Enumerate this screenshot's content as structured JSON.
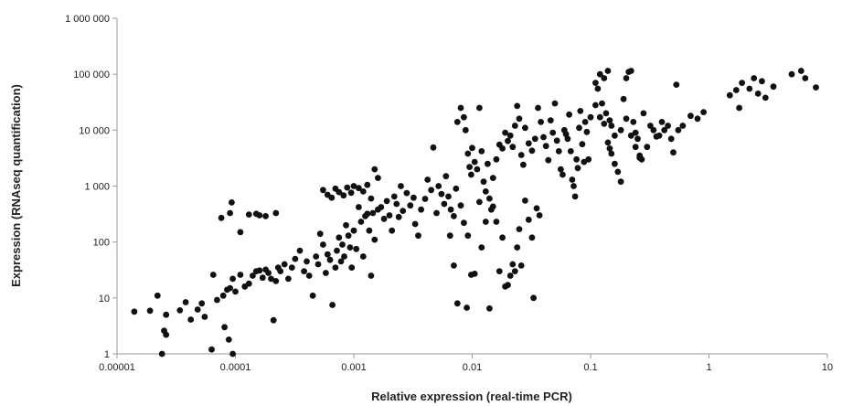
{
  "chart_data": {
    "type": "scatter",
    "title": "",
    "xlabel": "Relative expression (real-time PCR)",
    "ylabel": "Expression (RNAseq quantification)",
    "x_scale": "log",
    "y_scale": "log",
    "xlim": [
      1e-05,
      10
    ],
    "ylim": [
      1,
      1000000
    ],
    "grid": false,
    "x_ticks": [
      {
        "value": 1e-05,
        "label": "0.00001"
      },
      {
        "value": 0.0001,
        "label": "0.0001"
      },
      {
        "value": 0.001,
        "label": "0.001"
      },
      {
        "value": 0.01,
        "label": "0.01"
      },
      {
        "value": 0.1,
        "label": "0.1"
      },
      {
        "value": 1,
        "label": "1"
      },
      {
        "value": 10,
        "label": "10"
      }
    ],
    "y_ticks": [
      {
        "value": 1,
        "label": "1"
      },
      {
        "value": 10,
        "label": "10"
      },
      {
        "value": 100,
        "label": "100"
      },
      {
        "value": 1000,
        "label": "1 000"
      },
      {
        "value": 10000,
        "label": "10 000"
      },
      {
        "value": 100000,
        "label": "100 000"
      },
      {
        "value": 1000000,
        "label": "1 000 000"
      }
    ],
    "points": [
      [
        1.4e-05,
        5.7
      ],
      [
        1.9e-05,
        5.9
      ],
      [
        2.2e-05,
        11
      ],
      [
        2.5e-05,
        2.6
      ],
      [
        2.4e-05,
        1.0
      ],
      [
        2.6e-05,
        5.0
      ],
      [
        2.6e-05,
        2.2
      ],
      [
        3.4e-05,
        6.0
      ],
      [
        3.8e-05,
        8.4
      ],
      [
        4.2e-05,
        4.1
      ],
      [
        4.8e-05,
        6.2
      ],
      [
        5.2e-05,
        8.0
      ],
      [
        5.5e-05,
        4.6
      ],
      [
        6.3e-05,
        1.2
      ],
      [
        7e-05,
        9.2
      ],
      [
        6.5e-05,
        26
      ],
      [
        7.6e-05,
        270
      ],
      [
        8.1e-05,
        3.0
      ],
      [
        8.8e-05,
        1.8
      ],
      [
        9.5e-05,
        1.0
      ],
      [
        9.3e-05,
        510
      ],
      [
        9e-05,
        330
      ],
      [
        0.00011,
        150
      ],
      [
        0.00013,
        310
      ],
      [
        0.00015,
        320
      ],
      [
        0.00016,
        300
      ],
      [
        0.00018,
        290
      ],
      [
        0.00022,
        330
      ],
      [
        7.9e-05,
        11
      ],
      [
        8.5e-05,
        14
      ],
      [
        9e-05,
        15
      ],
      [
        9.5e-05,
        22
      ],
      [
        0.0001,
        13
      ],
      [
        0.00011,
        26
      ],
      [
        0.00012,
        16
      ],
      [
        0.00013,
        18
      ],
      [
        0.00014,
        25
      ],
      [
        0.00015,
        30
      ],
      [
        0.00016,
        31
      ],
      [
        0.00017,
        23
      ],
      [
        0.00018,
        32
      ],
      [
        0.00019,
        28
      ],
      [
        0.0002,
        22
      ],
      [
        0.00021,
        4.0
      ],
      [
        0.00022,
        20
      ],
      [
        0.00023,
        35
      ],
      [
        0.00024,
        30
      ],
      [
        0.00026,
        40
      ],
      [
        0.00028,
        22
      ],
      [
        0.0003,
        35
      ],
      [
        0.00032,
        50
      ],
      [
        0.00035,
        70
      ],
      [
        0.00038,
        30
      ],
      [
        0.0004,
        45
      ],
      [
        0.00042,
        25
      ],
      [
        0.00045,
        11
      ],
      [
        0.00048,
        55
      ],
      [
        0.0005,
        40
      ],
      [
        0.00052,
        140
      ],
      [
        0.00055,
        90
      ],
      [
        0.00058,
        28
      ],
      [
        0.0006,
        60
      ],
      [
        0.00063,
        48
      ],
      [
        0.00066,
        7.5
      ],
      [
        0.0007,
        35
      ],
      [
        0.00072,
        70
      ],
      [
        0.00075,
        120
      ],
      [
        0.00078,
        45
      ],
      [
        0.0008,
        90
      ],
      [
        0.00083,
        55
      ],
      [
        0.00086,
        200
      ],
      [
        0.0009,
        130
      ],
      [
        0.00093,
        80
      ],
      [
        0.00096,
        35
      ],
      [
        0.001,
        160
      ],
      [
        0.00055,
        850
      ],
      [
        0.0006,
        700
      ],
      [
        0.00065,
        620
      ],
      [
        0.0007,
        900
      ],
      [
        0.00075,
        780
      ],
      [
        0.00082,
        680
      ],
      [
        0.00088,
        940
      ],
      [
        0.00095,
        760
      ],
      [
        0.001,
        1000
      ],
      [
        0.0011,
        920
      ],
      [
        0.0012,
        800
      ],
      [
        0.0013,
        1050
      ],
      [
        0.0014,
        600
      ],
      [
        0.0015,
        2000
      ],
      [
        0.0016,
        1400
      ],
      [
        0.00105,
        75
      ],
      [
        0.0011,
        420
      ],
      [
        0.00115,
        230
      ],
      [
        0.0012,
        55
      ],
      [
        0.00125,
        290
      ],
      [
        0.0013,
        320
      ],
      [
        0.00135,
        160
      ],
      [
        0.0014,
        25
      ],
      [
        0.00145,
        330
      ],
      [
        0.0015,
        110
      ],
      [
        0.0016,
        380
      ],
      [
        0.0017,
        420
      ],
      [
        0.0018,
        260
      ],
      [
        0.0019,
        540
      ],
      [
        0.002,
        300
      ],
      [
        0.0021,
        160
      ],
      [
        0.0022,
        650
      ],
      [
        0.0023,
        480
      ],
      [
        0.0024,
        280
      ],
      [
        0.0025,
        1000
      ],
      [
        0.0026,
        360
      ],
      [
        0.0028,
        750
      ],
      [
        0.003,
        450
      ],
      [
        0.0032,
        620
      ],
      [
        0.0033,
        210
      ],
      [
        0.0035,
        130
      ],
      [
        0.0037,
        380
      ],
      [
        0.004,
        590
      ],
      [
        0.0042,
        1300
      ],
      [
        0.0045,
        850
      ],
      [
        0.0047,
        4900
      ],
      [
        0.005,
        330
      ],
      [
        0.0052,
        1000
      ],
      [
        0.0055,
        720
      ],
      [
        0.0058,
        480
      ],
      [
        0.006,
        1500
      ],
      [
        0.0063,
        650
      ],
      [
        0.0066,
        380
      ],
      [
        0.007,
        290
      ],
      [
        0.0073,
        900
      ],
      [
        0.0075,
        14000
      ],
      [
        0.008,
        25000
      ],
      [
        0.0085,
        17000
      ],
      [
        0.0088,
        10000
      ],
      [
        0.0092,
        3800
      ],
      [
        0.0095,
        2200
      ],
      [
        0.0098,
        1600
      ],
      [
        0.01,
        4800
      ],
      [
        0.0105,
        2700
      ],
      [
        0.011,
        2000
      ],
      [
        0.0115,
        25000
      ],
      [
        0.012,
        4200
      ],
      [
        0.0125,
        1200
      ],
      [
        0.013,
        800
      ],
      [
        0.0135,
        2500
      ],
      [
        0.014,
        600
      ],
      [
        0.015,
        1400
      ],
      [
        0.016,
        3000
      ],
      [
        0.017,
        5500
      ],
      [
        0.018,
        4700
      ],
      [
        0.019,
        9000
      ],
      [
        0.02,
        6400
      ],
      [
        0.021,
        8000
      ],
      [
        0.022,
        5000
      ],
      [
        0.023,
        12000
      ],
      [
        0.024,
        27000
      ],
      [
        0.025,
        16000
      ],
      [
        0.026,
        3600
      ],
      [
        0.027,
        2400
      ],
      [
        0.028,
        11000
      ],
      [
        0.03,
        5800
      ],
      [
        0.032,
        4300
      ],
      [
        0.034,
        7000
      ],
      [
        0.036,
        25000
      ],
      [
        0.038,
        14000
      ],
      [
        0.0065,
        130
      ],
      [
        0.007,
        38
      ],
      [
        0.0075,
        8
      ],
      [
        0.008,
        450
      ],
      [
        0.0085,
        220
      ],
      [
        0.009,
        6.7
      ],
      [
        0.0092,
        130
      ],
      [
        0.0098,
        26
      ],
      [
        0.0105,
        27
      ],
      [
        0.0115,
        520
      ],
      [
        0.012,
        80
      ],
      [
        0.013,
        230
      ],
      [
        0.014,
        6.5
      ],
      [
        0.0145,
        380
      ],
      [
        0.015,
        430
      ],
      [
        0.016,
        230
      ],
      [
        0.017,
        30
      ],
      [
        0.018,
        120
      ],
      [
        0.019,
        16
      ],
      [
        0.02,
        17
      ],
      [
        0.021,
        25
      ],
      [
        0.022,
        40
      ],
      [
        0.023,
        30
      ],
      [
        0.024,
        80
      ],
      [
        0.025,
        170
      ],
      [
        0.026,
        38
      ],
      [
        0.028,
        550
      ],
      [
        0.03,
        250
      ],
      [
        0.032,
        120
      ],
      [
        0.033,
        10
      ],
      [
        0.035,
        400
      ],
      [
        0.037,
        300
      ],
      [
        0.04,
        7500
      ],
      [
        0.042,
        5200
      ],
      [
        0.044,
        2900
      ],
      [
        0.046,
        15000
      ],
      [
        0.048,
        9000
      ],
      [
        0.05,
        30000
      ],
      [
        0.052,
        6500
      ],
      [
        0.054,
        4200
      ],
      [
        0.056,
        2000
      ],
      [
        0.058,
        1600
      ],
      [
        0.06,
        10000
      ],
      [
        0.062,
        8500
      ],
      [
        0.064,
        7000
      ],
      [
        0.066,
        19000
      ],
      [
        0.068,
        4200
      ],
      [
        0.07,
        1300
      ],
      [
        0.072,
        1000
      ],
      [
        0.074,
        650
      ],
      [
        0.076,
        3000
      ],
      [
        0.078,
        2100
      ],
      [
        0.08,
        11000
      ],
      [
        0.082,
        22000
      ],
      [
        0.085,
        5600
      ],
      [
        0.088,
        2700
      ],
      [
        0.09,
        14000
      ],
      [
        0.093,
        9300
      ],
      [
        0.096,
        3000
      ],
      [
        0.1,
        17000
      ],
      [
        0.12,
        100000
      ],
      [
        0.13,
        85000
      ],
      [
        0.14,
        115000
      ],
      [
        0.11,
        70000
      ],
      [
        0.115,
        55000
      ],
      [
        0.125,
        30000
      ],
      [
        0.135,
        20000
      ],
      [
        0.145,
        15000
      ],
      [
        0.15,
        12000
      ],
      [
        0.16,
        8000
      ],
      [
        0.17,
        1800
      ],
      [
        0.18,
        1200
      ],
      [
        0.19,
        36000
      ],
      [
        0.2,
        85000
      ],
      [
        0.21,
        110000
      ],
      [
        0.22,
        115000
      ],
      [
        0.23,
        14000
      ],
      [
        0.24,
        9000
      ],
      [
        0.25,
        7000
      ],
      [
        0.26,
        3500
      ],
      [
        0.27,
        3000
      ],
      [
        0.28,
        20000
      ],
      [
        0.3,
        5000
      ],
      [
        0.32,
        12000
      ],
      [
        0.34,
        10000
      ],
      [
        0.36,
        7700
      ],
      [
        0.38,
        8000
      ],
      [
        0.4,
        14000
      ],
      [
        0.42,
        10000
      ],
      [
        0.45,
        12000
      ],
      [
        0.48,
        7000
      ],
      [
        0.5,
        4000
      ],
      [
        0.53,
        65000
      ],
      [
        0.55,
        10000
      ],
      [
        0.11,
        28000
      ],
      [
        0.12,
        17000
      ],
      [
        0.13,
        13000
      ],
      [
        0.14,
        6000
      ],
      [
        0.145,
        4700
      ],
      [
        0.15,
        3800
      ],
      [
        0.16,
        2500
      ],
      [
        0.18,
        10000
      ],
      [
        0.2,
        16000
      ],
      [
        0.22,
        8000
      ],
      [
        0.24,
        5000
      ],
      [
        0.26,
        3200
      ],
      [
        0.6,
        12000
      ],
      [
        0.7,
        18000
      ],
      [
        0.8,
        16000
      ],
      [
        0.9,
        21000
      ],
      [
        1.5,
        42000
      ],
      [
        1.7,
        52000
      ],
      [
        1.8,
        25000
      ],
      [
        1.9,
        70000
      ],
      [
        2.2,
        55000
      ],
      [
        2.4,
        85000
      ],
      [
        2.6,
        45000
      ],
      [
        2.8,
        75000
      ],
      [
        3.0,
        38000
      ],
      [
        3.5,
        60000
      ],
      [
        5.0,
        100000
      ],
      [
        6.0,
        115000
      ],
      [
        6.5,
        85000
      ],
      [
        8.0,
        58000
      ]
    ]
  }
}
